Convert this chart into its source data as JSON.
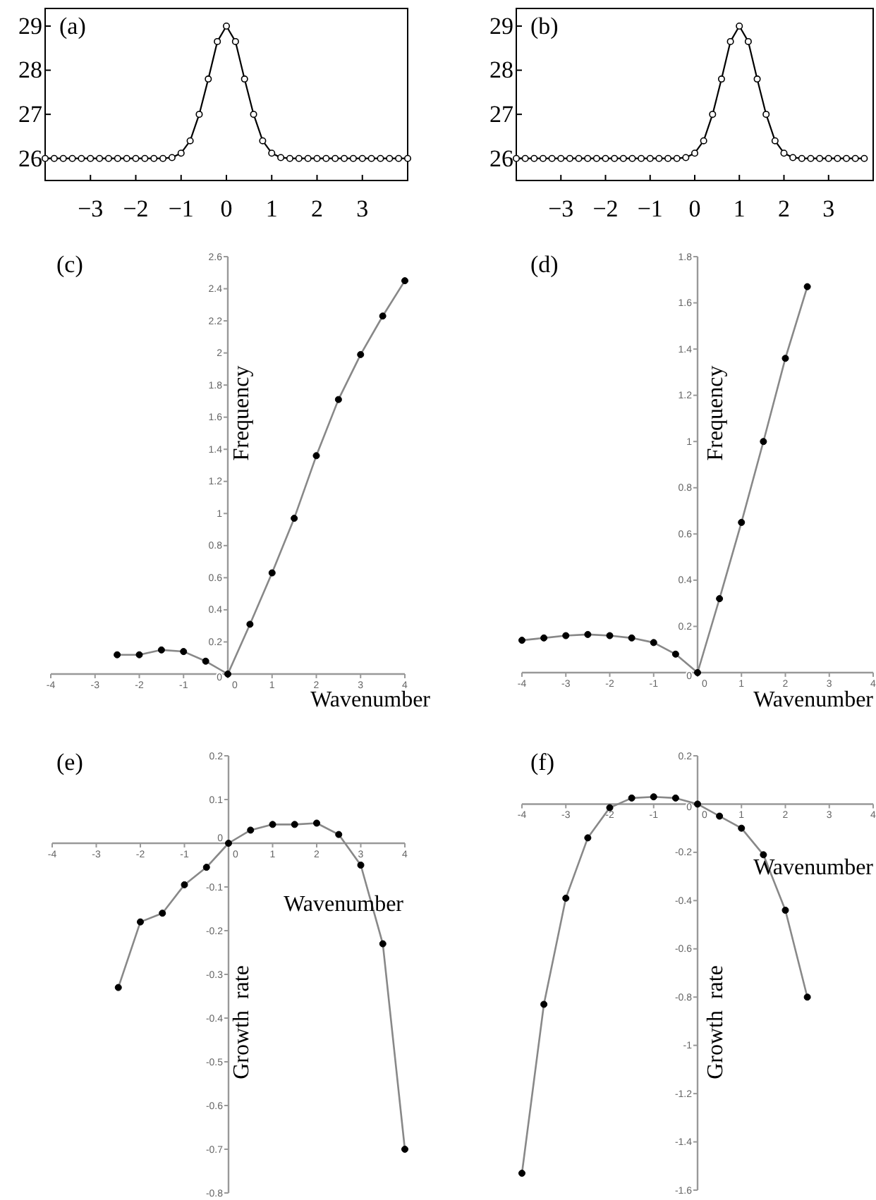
{
  "chart_data": [
    {
      "type": "line",
      "title": "(a)",
      "marker": "circle",
      "color": "#000000",
      "xlim": [
        -4,
        4
      ],
      "ylim": [
        25.5,
        29.4
      ],
      "xticks": [
        {
          "value": -3,
          "label": "−3"
        },
        {
          "value": -2,
          "label": "−2"
        },
        {
          "value": -1,
          "label": "−1"
        },
        0,
        1,
        2,
        3
      ],
      "yticks": [
        26,
        27,
        28,
        29
      ],
      "x": [
        -4,
        -3.8,
        -3.6,
        -3.4,
        -3.2,
        -3,
        -2.8,
        -2.6,
        -2.4,
        -2.2,
        -2,
        -1.8,
        -1.6,
        -1.4,
        -1.2,
        -1,
        -0.8,
        -0.6,
        -0.4,
        -0.2,
        0,
        0.2,
        0.4,
        0.6,
        0.8,
        1,
        1.2,
        1.4,
        1.6,
        1.8,
        2,
        2.2,
        2.4,
        2.6,
        2.8,
        3,
        3.2,
        3.4,
        3.6,
        3.8,
        4
      ],
      "values": [
        26,
        26,
        26,
        26,
        26,
        26,
        26,
        26,
        26,
        26,
        26,
        26,
        26,
        26,
        26.02,
        26.12,
        26.4,
        27.0,
        27.8,
        28.65,
        29,
        28.65,
        27.8,
        27.0,
        26.4,
        26.12,
        26.02,
        26,
        26,
        26,
        26,
        26,
        26,
        26,
        26,
        26,
        26,
        26,
        26,
        26,
        26
      ]
    },
    {
      "type": "line",
      "title": "(b)",
      "marker": "circle",
      "color": "#000000",
      "xlim": [
        -4,
        4
      ],
      "ylim": [
        25.5,
        29.4
      ],
      "xticks": [
        {
          "value": -3,
          "label": "−3"
        },
        {
          "value": -2,
          "label": "−2"
        },
        {
          "value": -1,
          "label": "−1"
        },
        0,
        1,
        2,
        3
      ],
      "yticks": [
        26,
        27,
        28,
        29
      ],
      "x": [
        -4,
        -3.8,
        -3.6,
        -3.4,
        -3.2,
        -3,
        -2.8,
        -2.6,
        -2.4,
        -2.2,
        -2,
        -1.8,
        -1.6,
        -1.4,
        -1.2,
        -1,
        -0.8,
        -0.6,
        -0.4,
        -0.2,
        0,
        0.2,
        0.4,
        0.6,
        0.8,
        1,
        1.2,
        1.4,
        1.6,
        1.8,
        2,
        2.2,
        2.4,
        2.6,
        2.8,
        3,
        3.2,
        3.4,
        3.6,
        3.8
      ],
      "values": [
        26,
        26,
        26,
        26,
        26,
        26,
        26,
        26,
        26,
        26,
        26,
        26,
        26,
        26,
        26,
        26,
        26,
        26,
        26,
        26.02,
        26.12,
        26.4,
        27.0,
        27.8,
        28.65,
        29,
        28.65,
        27.8,
        27.0,
        26.4,
        26.12,
        26.02,
        26,
        26,
        26,
        26,
        26,
        26,
        26,
        26
      ]
    },
    {
      "type": "line",
      "title": "(c)",
      "xlabel": "Wavenumber",
      "ylabel": "Frequency",
      "marker": "circle",
      "color": "#888888",
      "xlim": [
        -4,
        4
      ],
      "ylim": [
        0,
        2.6
      ],
      "xticks": [
        -4,
        -3,
        -2,
        -1,
        0,
        1,
        2,
        3,
        4
      ],
      "yticks": [
        0,
        0.2,
        0.4,
        0.6,
        0.8,
        1,
        1.2,
        1.4,
        1.6,
        1.8,
        2,
        2.2,
        2.4,
        2.6
      ],
      "x": [
        -2.5,
        -2,
        -1.5,
        -1,
        -0.5,
        0,
        0.5,
        1,
        1.5,
        2,
        2.5,
        3,
        3.5,
        4
      ],
      "values": [
        0.12,
        0.12,
        0.15,
        0.14,
        0.08,
        0,
        0.31,
        0.63,
        0.97,
        1.36,
        1.71,
        1.99,
        2.23,
        2.45
      ]
    },
    {
      "type": "line",
      "title": "(d)",
      "xlabel": "Wavenumber",
      "ylabel": "Frequency",
      "marker": "circle",
      "color": "#888888",
      "xlim": [
        -4,
        4
      ],
      "ylim": [
        0,
        1.8
      ],
      "xticks": [
        -4,
        -3,
        -2,
        -1,
        0,
        1,
        2,
        3,
        4
      ],
      "yticks": [
        0,
        0.2,
        0.4,
        0.6,
        0.8,
        1,
        1.2,
        1.4,
        1.6,
        1.8
      ],
      "x": [
        -4,
        -3.5,
        -3,
        -2.5,
        -2,
        -1.5,
        -1,
        -0.5,
        0,
        0.5,
        1,
        1.5,
        2,
        2.5
      ],
      "values": [
        0.14,
        0.15,
        0.16,
        0.165,
        0.16,
        0.15,
        0.13,
        0.08,
        0,
        0.32,
        0.65,
        1.0,
        1.36,
        1.67
      ]
    },
    {
      "type": "line",
      "title": "(e)",
      "xlabel": "Wavenumber",
      "ylabel": "Growth  rate",
      "marker": "circle",
      "color": "#888888",
      "xlim": [
        -4,
        4
      ],
      "ylim": [
        -0.8,
        0.2
      ],
      "xticks": [
        -4,
        -3,
        -2,
        -1,
        0,
        1,
        2,
        3,
        4
      ],
      "yticks": [
        -0.8,
        -0.7,
        -0.6,
        -0.5,
        -0.4,
        -0.3,
        -0.2,
        -0.1,
        0,
        0.1,
        0.2
      ],
      "x": [
        -2.5,
        -2,
        -1.5,
        -1,
        -0.5,
        0,
        0.5,
        1,
        1.5,
        2,
        2.5,
        3,
        3.5,
        4
      ],
      "values": [
        -0.33,
        -0.18,
        -0.16,
        -0.095,
        -0.055,
        0,
        0.03,
        0.043,
        0.043,
        0.046,
        0.02,
        -0.05,
        -0.23,
        -0.7
      ]
    },
    {
      "type": "line",
      "title": "(f)",
      "xlabel": "Wavenumber",
      "ylabel": "Growth  rate",
      "marker": "circle",
      "color": "#888888",
      "xlim": [
        -4,
        4
      ],
      "ylim": [
        -1.6,
        0.2
      ],
      "xticks": [
        -4,
        -3,
        -2,
        -1,
        0,
        1,
        2,
        3,
        4
      ],
      "yticks": [
        -1.6,
        -1.4,
        -1.2,
        -1,
        -0.8,
        -0.6,
        -0.4,
        -0.2,
        0,
        0.2
      ],
      "x": [
        -4,
        -3.5,
        -3,
        -2.5,
        -2,
        -1.5,
        -1,
        -0.5,
        0,
        0.5,
        1,
        1.5,
        2,
        2.5
      ],
      "values": [
        -1.53,
        -0.83,
        -0.39,
        -0.14,
        -0.015,
        0.025,
        0.03,
        0.025,
        0,
        -0.05,
        -0.1,
        -0.21,
        -0.44,
        -0.8
      ]
    }
  ]
}
